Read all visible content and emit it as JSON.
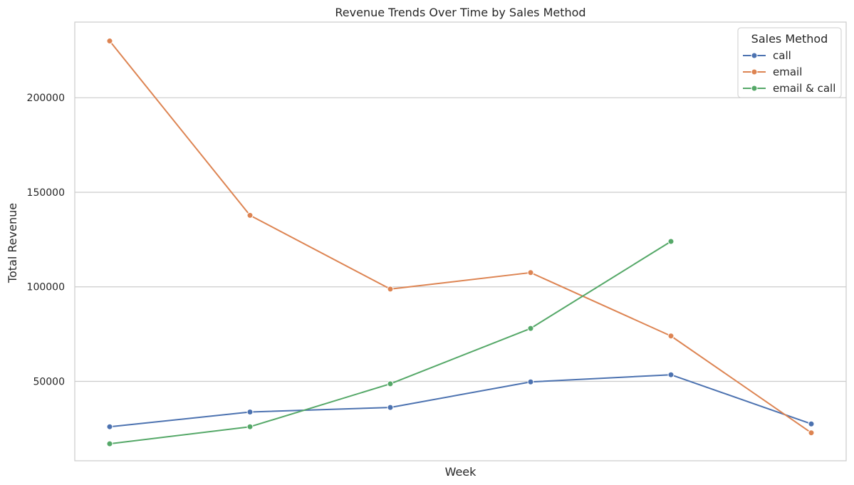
{
  "chart_data": {
    "type": "line",
    "title": "Revenue Trends Over Time by Sales Method",
    "xlabel": "Week",
    "ylabel": "Total Revenue",
    "x": [
      1,
      2,
      3,
      4,
      5,
      6
    ],
    "xticks_shown": false,
    "ylim": [
      8000,
      240000
    ],
    "yticks": [
      50000,
      100000,
      150000,
      200000
    ],
    "grid": "horizontal",
    "legend": {
      "title": "Sales Method",
      "position": "top-right"
    },
    "series": [
      {
        "name": "call",
        "color": "#4c72b0",
        "values": [
          26000,
          33800,
          36200,
          49700,
          53500,
          27500
        ]
      },
      {
        "name": "email",
        "color": "#dd8452",
        "values": [
          230000,
          137800,
          98800,
          107500,
          74000,
          22800
        ]
      },
      {
        "name": "email & call",
        "color": "#55a868",
        "values": [
          17000,
          26000,
          48700,
          78000,
          124000,
          null
        ]
      }
    ]
  }
}
